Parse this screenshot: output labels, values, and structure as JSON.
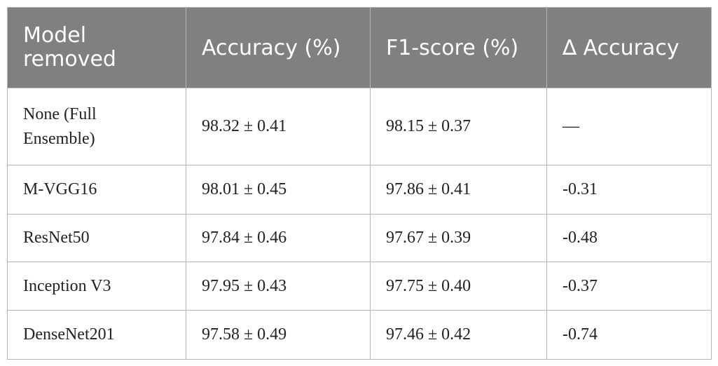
{
  "table": {
    "header": [
      "Model removed",
      "Accuracy (%)",
      "F1-score (%)",
      "∆ Accuracy"
    ],
    "rows": [
      [
        "None (Full Ensemble)",
        "98.32 ± 0.41",
        "98.15 ± 0.37",
        "—"
      ],
      [
        "M-VGG16",
        "98.01 ± 0.45",
        "97.86 ± 0.41",
        "-0.31"
      ],
      [
        "ResNet50",
        "97.84 ± 0.46",
        "97.67 ± 0.39",
        "-0.48"
      ],
      [
        "Inception V3",
        "97.95 ± 0.43",
        "97.75 ± 0.40",
        "-0.37"
      ],
      [
        "DenseNet201",
        "97.58 ± 0.49",
        "97.46 ± 0.42",
        "-0.74"
      ]
    ]
  }
}
